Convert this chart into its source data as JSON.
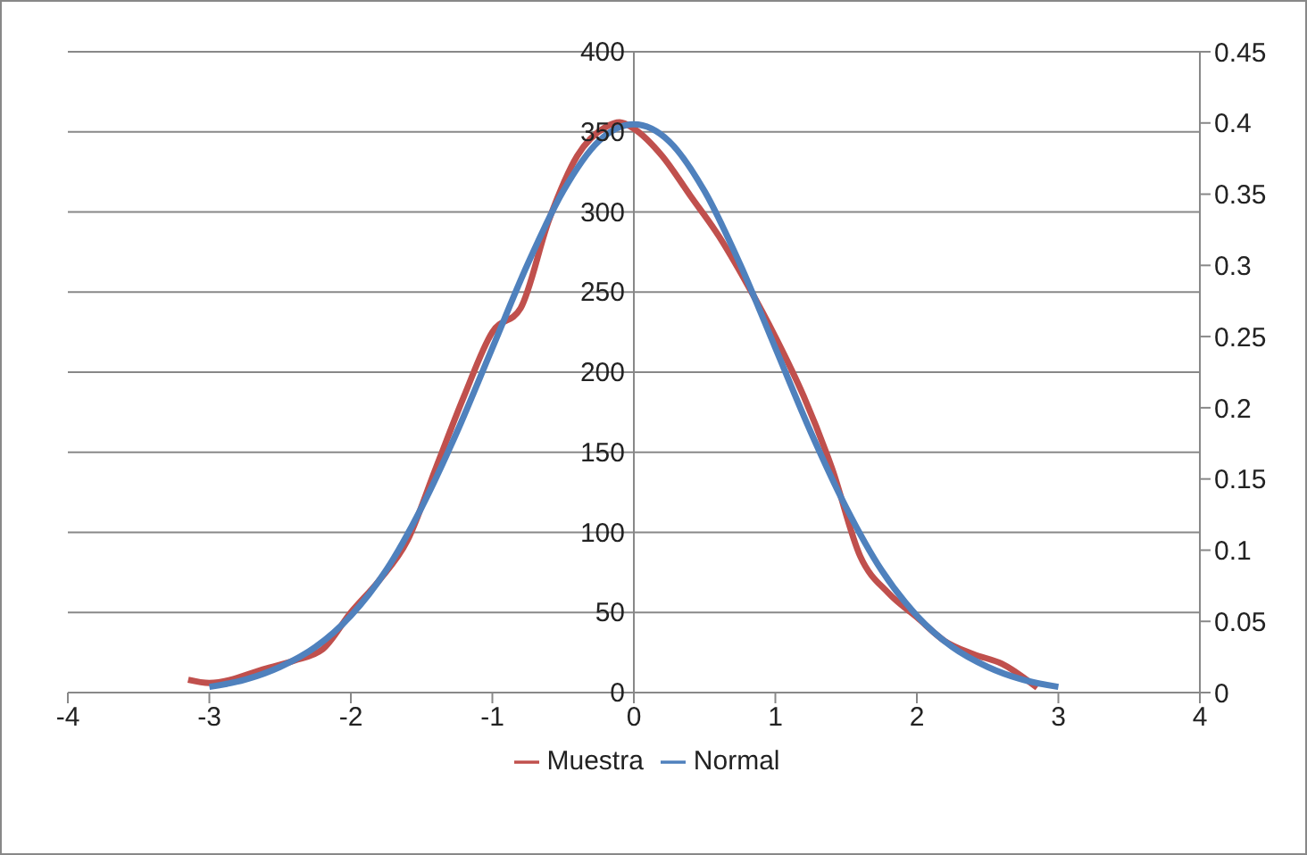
{
  "chart_data": {
    "type": "line",
    "xlim": [
      -4,
      4
    ],
    "xticks": [
      -4,
      -3,
      -2,
      -1,
      0,
      1,
      2,
      3,
      4
    ],
    "ylim": [
      0,
      400
    ],
    "yticks": [
      0,
      50,
      100,
      150,
      200,
      250,
      300,
      350,
      400
    ],
    "y2lim": [
      0,
      0.45
    ],
    "y2ticks": [
      0,
      0.05,
      0.1,
      0.15,
      0.2,
      0.25,
      0.3,
      0.35,
      0.4,
      0.45
    ],
    "grid": "y",
    "legend": "bottom",
    "marker": "none",
    "line_style": "solid",
    "series": [
      {
        "name": "Muestra",
        "color": "#c0504d",
        "x": [
          -3.15,
          -3.0,
          -2.6,
          -2.4,
          -2.2,
          -2.0,
          -1.8,
          -1.6,
          -1.4,
          -1.2,
          -1.0,
          -0.8,
          -0.6,
          -0.4,
          -0.2,
          -0.1,
          0,
          0.2,
          0.4,
          0.6,
          0.8,
          1.0,
          1.2,
          1.4,
          1.6,
          1.8,
          2.0,
          2.2,
          2.4,
          2.6,
          2.85
        ],
        "values": [
          8,
          6,
          15,
          20,
          27,
          50,
          70,
          95,
          140,
          185,
          225,
          240,
          295,
          335,
          353,
          356,
          352,
          335,
          310,
          285,
          255,
          222,
          185,
          140,
          85,
          62,
          47,
          32,
          24,
          18,
          3
        ]
      },
      {
        "name": "Normal",
        "color": "#4f81bd",
        "axis": "y2",
        "x": [
          -3,
          -2.75,
          -2.5,
          -2.25,
          -2,
          -1.75,
          -1.5,
          -1.25,
          -1,
          -0.75,
          -0.5,
          -0.25,
          0,
          0.25,
          0.5,
          0.75,
          1,
          1.25,
          1.5,
          1.75,
          2,
          2.25,
          2.5,
          2.75,
          3
        ],
        "values": [
          0.004,
          0.009,
          0.018,
          0.032,
          0.054,
          0.086,
          0.13,
          0.183,
          0.242,
          0.301,
          0.352,
          0.387,
          0.399,
          0.387,
          0.352,
          0.301,
          0.242,
          0.183,
          0.13,
          0.086,
          0.054,
          0.032,
          0.018,
          0.009,
          0.004
        ]
      }
    ]
  }
}
